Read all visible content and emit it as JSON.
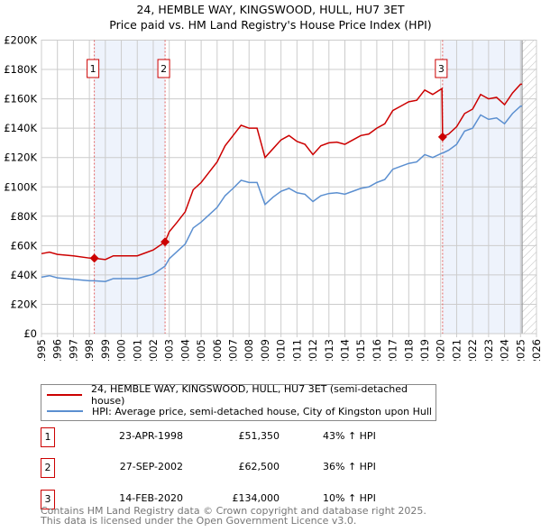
{
  "chart_data": {
    "type": "line",
    "title": "24, HEMBLE WAY, KINGSWOOD, HULL, HU7 3ET",
    "subtitle": "Price paid vs. HM Land Registry's House Price Index (HPI)",
    "xlim": [
      1995,
      2026
    ],
    "ylim": [
      0,
      200000
    ],
    "y_ticks": [
      {
        "v": 0,
        "l": "£0"
      },
      {
        "v": 20000,
        "l": "£20K"
      },
      {
        "v": 40000,
        "l": "£40K"
      },
      {
        "v": 60000,
        "l": "£60K"
      },
      {
        "v": 80000,
        "l": "£80K"
      },
      {
        "v": 100000,
        "l": "£100K"
      },
      {
        "v": 120000,
        "l": "£120K"
      },
      {
        "v": 140000,
        "l": "£140K"
      },
      {
        "v": 160000,
        "l": "£160K"
      },
      {
        "v": 180000,
        "l": "£180K"
      },
      {
        "v": 200000,
        "l": "£200K"
      }
    ],
    "x_ticks": [
      "1995",
      "1996",
      "1997",
      "1998",
      "1999",
      "2000",
      "2001",
      "2002",
      "2003",
      "2004",
      "2005",
      "2006",
      "2007",
      "2008",
      "2009",
      "2010",
      "2011",
      "2012",
      "2013",
      "2014",
      "2015",
      "2016",
      "2017",
      "2018",
      "2019",
      "2020",
      "2021",
      "2022",
      "2023",
      "2024",
      "2025",
      "2026"
    ],
    "grid": true,
    "x": [
      1995,
      1995.5,
      1996,
      1997,
      1998,
      1998.3,
      1999,
      1999.5,
      2000,
      2001,
      2001.5,
      2002,
      2002.74,
      2003,
      2003.5,
      2004,
      2004.5,
      2005,
      2005.5,
      2006,
      2006.5,
      2007,
      2007.5,
      2008,
      2008.5,
      2009,
      2009.5,
      2010,
      2010.5,
      2011,
      2011.5,
      2012,
      2012.5,
      2013,
      2013.5,
      2014,
      2014.5,
      2015,
      2015.5,
      2016,
      2016.5,
      2017,
      2017.5,
      2018,
      2018.5,
      2019,
      2019.5,
      2020.08,
      2020.12,
      2020.5,
      2021,
      2021.5,
      2022,
      2022.5,
      2023,
      2023.5,
      2024,
      2024.5,
      2025,
      2025.1
    ],
    "series": [
      {
        "name": "24, HEMBLE WAY, KINGSWOOD, HULL, HU7 3ET (semi-detached house)",
        "color": "#cc0000",
        "values": [
          54500,
          55500,
          54000,
          53000,
          51500,
          51350,
          50500,
          53000,
          53000,
          53000,
          55000,
          57000,
          62500,
          69400,
          76000,
          83000,
          98000,
          103000,
          110000,
          117000,
          128000,
          135000,
          142000,
          140000,
          140000,
          120000,
          126000,
          132000,
          135000,
          131000,
          129000,
          122000,
          128000,
          130000,
          130500,
          129000,
          132000,
          135000,
          136000,
          140000,
          143000,
          152000,
          155000,
          158000,
          159000,
          166000,
          163000,
          167000,
          134000,
          136000,
          141000,
          150000,
          153000,
          163000,
          160000,
          161000,
          156000,
          164000,
          170000,
          170000
        ]
      },
      {
        "name": "HPI: Average price, semi-detached house, City of Kingston upon Hull",
        "color": "#5b8fd0",
        "values": [
          38500,
          39500,
          38000,
          37000,
          36000,
          36000,
          35500,
          37500,
          37500,
          37500,
          39000,
          40500,
          46000,
          51000,
          56000,
          61000,
          72000,
          76000,
          81000,
          86000,
          94000,
          99000,
          104500,
          103000,
          103000,
          88000,
          93000,
          97000,
          99000,
          96000,
          95000,
          90000,
          94000,
          95500,
          96000,
          95000,
          97000,
          99000,
          100000,
          103000,
          105000,
          112000,
          114000,
          116000,
          117000,
          122000,
          120000,
          123000,
          123000,
          125000,
          129000,
          138000,
          140000,
          149000,
          146000,
          147000,
          143000,
          150000,
          155000,
          155000
        ]
      }
    ],
    "sales": [
      {
        "id": "1",
        "date": "23-APR-1998",
        "x": 1998.31,
        "price": 51350,
        "price_label": "£51,350",
        "pct": "43% ↑ HPI"
      },
      {
        "id": "2",
        "date": "27-SEP-2002",
        "x": 2002.74,
        "price": 62500,
        "price_label": "£62,500",
        "pct": "36% ↑ HPI"
      },
      {
        "id": "3",
        "date": "14-FEB-2020",
        "x": 2020.12,
        "price": 134000,
        "price_label": "£134,000",
        "pct": "10% ↑ HPI"
      }
    ],
    "shaded_ranges": [
      [
        1998.31,
        2002.74
      ],
      [
        2020.12,
        2025.1
      ]
    ],
    "hatched_range": [
      2025.1,
      2026
    ]
  },
  "footer": {
    "line1": "Contains HM Land Registry data © Crown copyright and database right 2025.",
    "line2": "This data is licensed under the Open Government Licence v3.0."
  }
}
